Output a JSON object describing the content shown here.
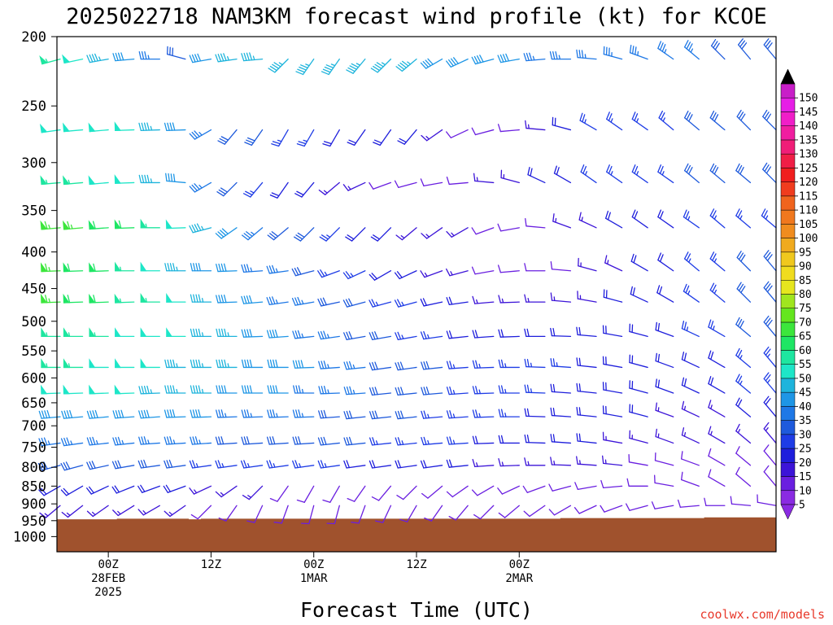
{
  "chart_data": {
    "type": "wind-barb-time-height",
    "title": "2025022718 NAM3KM forecast wind profile (kt) for KCOE",
    "xlabel": "Forecast Time (UTC)",
    "ylabel": "",
    "y_axis": {
      "scale": "log-pressure",
      "units": "hPa",
      "range": [
        1050,
        200
      ],
      "ticks": [
        200,
        250,
        300,
        350,
        400,
        450,
        500,
        550,
        600,
        650,
        700,
        750,
        800,
        850,
        900,
        950,
        1000
      ]
    },
    "x_axis": {
      "range_forecast_hours": [
        0,
        84
      ],
      "ticks": [
        {
          "hour": 6,
          "lines": [
            "00Z",
            "28FEB",
            "2025"
          ]
        },
        {
          "hour": 18,
          "lines": [
            "12Z"
          ]
        },
        {
          "hour": 30,
          "lines": [
            "00Z",
            "1MAR"
          ]
        },
        {
          "hour": 42,
          "lines": [
            "12Z"
          ]
        },
        {
          "hour": 54,
          "lines": [
            "00Z",
            "2MAR"
          ]
        }
      ]
    },
    "colorbar": {
      "units": "kt",
      "levels": [
        5,
        10,
        15,
        20,
        25,
        30,
        35,
        40,
        45,
        50,
        55,
        60,
        65,
        70,
        75,
        80,
        85,
        90,
        95,
        100,
        105,
        110,
        115,
        120,
        125,
        130,
        135,
        140,
        145,
        150
      ],
      "colors": [
        "#8a2be2",
        "#6a1fe0",
        "#3c14d8",
        "#1e1edc",
        "#1e3ce6",
        "#1e5adc",
        "#1e78e6",
        "#1e96e6",
        "#1eb4dc",
        "#1ee6c8",
        "#1ee6a0",
        "#1ee664",
        "#3ce63c",
        "#64e61e",
        "#a0e61e",
        "#e6e61e",
        "#f0dc1e",
        "#f0c81e",
        "#f0aa1e",
        "#f08c1e",
        "#f0781e",
        "#f0641e",
        "#f03c1e",
        "#f01e1e",
        "#f01e46",
        "#f01e78",
        "#f01ea0",
        "#f01ec8",
        "#e61ee6",
        "#c81ec8"
      ]
    },
    "terrain": {
      "color": "#a0522d",
      "surface_pressure_hpa": [
        946,
        946,
        946,
        946,
        946,
        944,
        944,
        944,
        944,
        944,
        944,
        946,
        944,
        944,
        944,
        944,
        944,
        944,
        944,
        944,
        944,
        944,
        944,
        944,
        944,
        944,
        944,
        944,
        944,
        944,
        944,
        944,
        944,
        944,
        944,
        944,
        944,
        944,
        944,
        944,
        944,
        944,
        942,
        942,
        942,
        942,
        942,
        942,
        942,
        942,
        942,
        942,
        942,
        942,
        940,
        940,
        940,
        940,
        940,
        940
      ]
    },
    "levels_hpa": [
      215,
      270,
      320,
      370,
      425,
      470,
      525,
      580,
      630,
      680,
      740,
      795,
      850,
      905
    ],
    "times_forecast_hours": [
      0,
      3,
      6,
      9,
      12,
      15,
      18,
      21,
      24,
      27,
      30,
      33,
      36,
      39,
      42,
      45,
      48,
      51,
      54,
      57,
      60,
      63,
      66,
      69,
      72,
      75,
      78,
      81,
      84
    ],
    "wind": {
      "215": {
        "dir": [
          255,
          258,
          260,
          265,
          270,
          285,
          260,
          262,
          265,
          225,
          215,
          215,
          220,
          225,
          230,
          240,
          245,
          255,
          260,
          265,
          270,
          275,
          285,
          290,
          305,
          310,
          315,
          320,
          320
        ],
        "spd": [
          55,
          50,
          45,
          40,
          35,
          30,
          40,
          45,
          45,
          45,
          45,
          45,
          45,
          45,
          45,
          40,
          40,
          40,
          40,
          35,
          35,
          35,
          35,
          35,
          35,
          35,
          30,
          30,
          30
        ]
      },
      "270": {
        "dir": [
          262,
          265,
          265,
          268,
          268,
          268,
          240,
          220,
          215,
          210,
          210,
          210,
          215,
          215,
          220,
          235,
          245,
          255,
          265,
          275,
          285,
          300,
          305,
          305,
          310,
          310,
          310,
          315,
          315
        ],
        "spd": [
          50,
          50,
          50,
          50,
          45,
          40,
          35,
          30,
          30,
          25,
          25,
          20,
          20,
          20,
          20,
          15,
          10,
          10,
          10,
          15,
          20,
          25,
          25,
          25,
          25,
          30,
          30,
          30,
          30
        ]
      },
      "320": {
        "dir": [
          265,
          265,
          265,
          268,
          270,
          275,
          240,
          225,
          220,
          215,
          220,
          230,
          245,
          250,
          255,
          260,
          265,
          275,
          285,
          295,
          300,
          305,
          305,
          305,
          305,
          310,
          310,
          310,
          315
        ],
        "spd": [
          55,
          55,
          50,
          50,
          45,
          40,
          35,
          30,
          25,
          20,
          20,
          15,
          15,
          10,
          10,
          10,
          10,
          15,
          15,
          20,
          20,
          25,
          25,
          25,
          25,
          30,
          30,
          30,
          30
        ]
      },
      "370": {
        "dir": [
          265,
          265,
          266,
          268,
          270,
          268,
          255,
          235,
          230,
          230,
          225,
          225,
          225,
          225,
          230,
          235,
          240,
          250,
          260,
          275,
          290,
          295,
          300,
          305,
          305,
          305,
          310,
          310,
          310
        ],
        "spd": [
          65,
          65,
          60,
          60,
          55,
          50,
          45,
          40,
          35,
          30,
          30,
          25,
          20,
          20,
          15,
          15,
          15,
          10,
          10,
          10,
          15,
          15,
          20,
          20,
          20,
          25,
          25,
          25,
          25
        ]
      },
      "425": {
        "dir": [
          268,
          268,
          268,
          270,
          270,
          270,
          270,
          268,
          266,
          262,
          255,
          250,
          245,
          240,
          245,
          250,
          255,
          260,
          265,
          270,
          275,
          285,
          295,
          300,
          305,
          310,
          310,
          315,
          320
        ],
        "spd": [
          65,
          60,
          60,
          55,
          50,
          45,
          40,
          40,
          35,
          35,
          30,
          25,
          25,
          20,
          20,
          15,
          15,
          10,
          10,
          10,
          10,
          15,
          15,
          20,
          20,
          25,
          25,
          30,
          30
        ]
      },
      "470": {
        "dir": [
          268,
          268,
          268,
          268,
          270,
          270,
          270,
          268,
          265,
          262,
          260,
          258,
          255,
          255,
          255,
          258,
          262,
          265,
          268,
          270,
          275,
          280,
          285,
          295,
          300,
          305,
          310,
          315,
          320
        ],
        "spd": [
          65,
          60,
          60,
          55,
          55,
          50,
          45,
          40,
          40,
          35,
          35,
          30,
          30,
          25,
          25,
          20,
          20,
          15,
          15,
          15,
          15,
          15,
          20,
          20,
          20,
          25,
          25,
          30,
          30
        ]
      },
      "525": {
        "dir": [
          270,
          270,
          270,
          270,
          270,
          270,
          270,
          270,
          268,
          266,
          264,
          262,
          260,
          260,
          260,
          262,
          264,
          266,
          268,
          270,
          272,
          275,
          280,
          285,
          290,
          295,
          300,
          310,
          320
        ],
        "spd": [
          55,
          55,
          55,
          50,
          50,
          50,
          45,
          45,
          40,
          40,
          35,
          35,
          30,
          30,
          25,
          25,
          20,
          20,
          20,
          20,
          20,
          20,
          20,
          20,
          20,
          25,
          25,
          30,
          30
        ]
      },
      "580": {
        "dir": [
          270,
          270,
          270,
          270,
          270,
          270,
          270,
          270,
          270,
          270,
          268,
          266,
          264,
          262,
          262,
          264,
          266,
          268,
          270,
          272,
          274,
          276,
          280,
          285,
          290,
          295,
          300,
          310,
          320
        ],
        "spd": [
          55,
          55,
          50,
          50,
          50,
          45,
          45,
          45,
          40,
          40,
          40,
          35,
          35,
          30,
          30,
          30,
          25,
          25,
          25,
          25,
          25,
          20,
          20,
          20,
          20,
          20,
          20,
          25,
          25
        ]
      },
      "630": {
        "dir": [
          268,
          268,
          268,
          268,
          268,
          270,
          270,
          270,
          270,
          270,
          270,
          268,
          266,
          264,
          264,
          265,
          266,
          268,
          270,
          272,
          274,
          276,
          280,
          285,
          290,
          295,
          300,
          310,
          320
        ],
        "spd": [
          50,
          50,
          50,
          50,
          45,
          45,
          45,
          40,
          40,
          40,
          35,
          35,
          35,
          30,
          30,
          30,
          25,
          25,
          25,
          25,
          20,
          20,
          20,
          20,
          20,
          20,
          20,
          25,
          25
        ]
      },
      "680": {
        "dir": [
          265,
          265,
          265,
          266,
          266,
          268,
          268,
          268,
          268,
          268,
          268,
          266,
          264,
          264,
          264,
          265,
          266,
          268,
          270,
          272,
          274,
          276,
          280,
          285,
          290,
          295,
          300,
          310,
          320
        ],
        "spd": [
          40,
          40,
          40,
          40,
          40,
          40,
          40,
          35,
          35,
          35,
          35,
          30,
          30,
          30,
          30,
          25,
          25,
          25,
          25,
          20,
          20,
          20,
          20,
          20,
          15,
          15,
          15,
          20,
          20
        ]
      },
      "740": {
        "dir": [
          262,
          262,
          264,
          264,
          266,
          266,
          266,
          266,
          266,
          266,
          266,
          264,
          264,
          264,
          264,
          265,
          266,
          268,
          270,
          272,
          274,
          276,
          280,
          285,
          290,
          295,
          300,
          310,
          320
        ],
        "spd": [
          35,
          35,
          35,
          35,
          35,
          35,
          35,
          30,
          30,
          30,
          30,
          30,
          30,
          25,
          25,
          25,
          25,
          20,
          20,
          20,
          20,
          20,
          15,
          15,
          15,
          15,
          15,
          15,
          15
        ]
      },
      "795": {
        "dir": [
          255,
          255,
          258,
          260,
          262,
          262,
          262,
          262,
          262,
          262,
          262,
          262,
          262,
          262,
          262,
          262,
          264,
          266,
          268,
          270,
          272,
          274,
          276,
          280,
          285,
          290,
          300,
          310,
          320
        ],
        "spd": [
          30,
          30,
          30,
          30,
          30,
          30,
          25,
          25,
          25,
          25,
          25,
          25,
          20,
          20,
          20,
          20,
          20,
          15,
          15,
          15,
          15,
          15,
          15,
          10,
          10,
          10,
          10,
          10,
          10
        ]
      },
      "850": {
        "dir": [
          240,
          240,
          245,
          248,
          250,
          250,
          245,
          235,
          225,
          215,
          210,
          210,
          215,
          220,
          225,
          230,
          235,
          240,
          245,
          250,
          255,
          260,
          265,
          270,
          280,
          290,
          300,
          310,
          320
        ],
        "spd": [
          20,
          20,
          20,
          20,
          20,
          20,
          15,
          15,
          15,
          10,
          10,
          10,
          10,
          10,
          10,
          10,
          10,
          10,
          10,
          10,
          10,
          10,
          10,
          10,
          10,
          10,
          10,
          10,
          10
        ]
      },
      "905": {
        "dir": [
          230,
          232,
          235,
          238,
          240,
          235,
          225,
          215,
          205,
          200,
          195,
          195,
          200,
          205,
          210,
          215,
          220,
          225,
          230,
          235,
          240,
          245,
          250,
          255,
          260,
          265,
          270,
          275,
          280
        ],
        "spd": [
          15,
          15,
          15,
          15,
          15,
          15,
          10,
          10,
          10,
          10,
          10,
          10,
          10,
          10,
          10,
          10,
          10,
          10,
          10,
          10,
          10,
          10,
          10,
          10,
          10,
          10,
          10,
          10,
          10
        ]
      }
    }
  },
  "credit": "coolwx.com/models"
}
